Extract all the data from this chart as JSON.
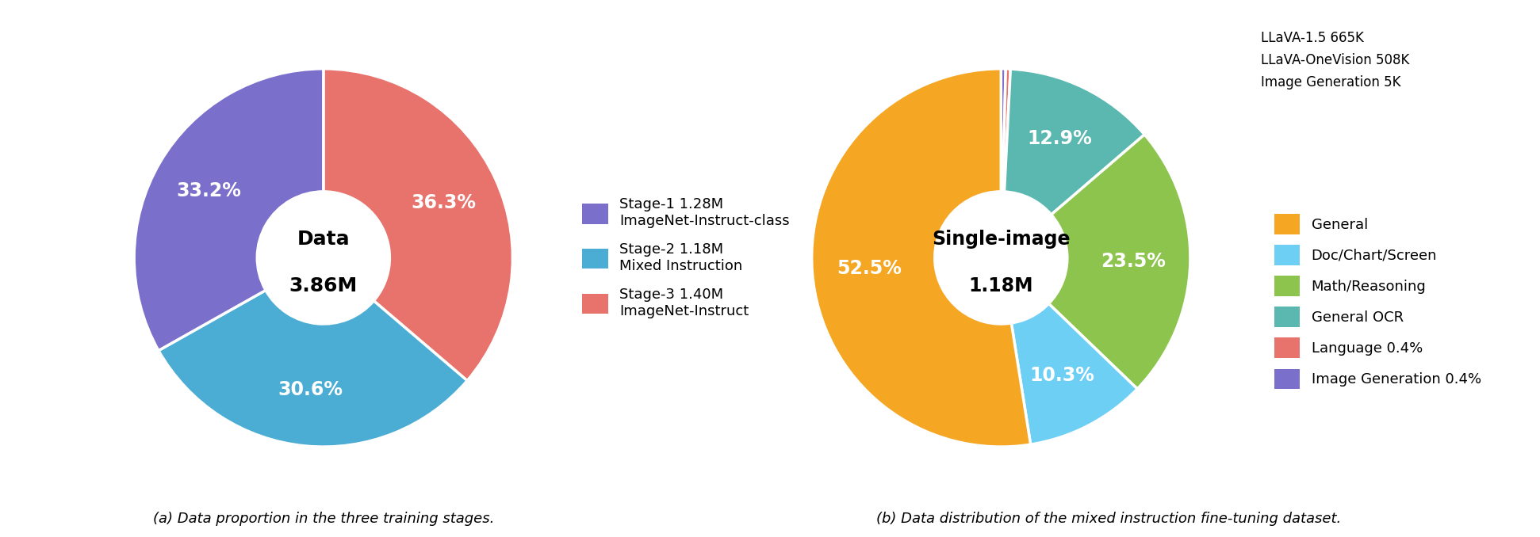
{
  "chart_a": {
    "title_line1": "Data",
    "title_line2": "3.86M",
    "slices": [
      36.3,
      30.6,
      33.2
    ],
    "colors": [
      "#E8736C",
      "#4BACD4",
      "#7B6FCC"
    ],
    "labels": [
      "36.3%",
      "30.6%",
      "33.2%"
    ],
    "startangle": 90,
    "legend_entries": [
      [
        "Stage-1 1.28M",
        "ImageNet-Instruct-class"
      ],
      [
        "Stage-2 1.18M",
        "Mixed Instruction"
      ],
      [
        "Stage-3 1.40M",
        "ImageNet-Instruct"
      ]
    ],
    "legend_colors": [
      "#7B6FCC",
      "#4BACD4",
      "#E8736C"
    ],
    "caption": "(a) Data proportion in the three training stages."
  },
  "chart_b": {
    "title_line1": "Single-image",
    "title_line2": "1.18M",
    "slices": [
      0.4,
      0.4,
      12.9,
      23.5,
      10.3,
      52.5
    ],
    "colors": [
      "#7B6FCC",
      "#E8736C",
      "#5BB8B0",
      "#8DC44E",
      "#6ECFF5",
      "#F5A623"
    ],
    "labels": [
      "",
      "",
      "12.9%",
      "23.5%",
      "10.3%",
      "52.5%"
    ],
    "startangle": 90,
    "note_lines": [
      "LLaVA-1.5 665K",
      "LLaVA-OneVision 508K",
      "Image Generation 5K"
    ],
    "legend_entries": [
      "General",
      "Doc/Chart/Screen",
      "Math/Reasoning",
      "General OCR",
      "Language 0.4%",
      "Image Generation 0.4%"
    ],
    "legend_colors": [
      "#F5A623",
      "#6ECFF5",
      "#8DC44E",
      "#5BB8B0",
      "#E8736C",
      "#7B6FCC"
    ],
    "caption": "(b) Data distribution of the mixed instruction fine-tuning dataset."
  }
}
